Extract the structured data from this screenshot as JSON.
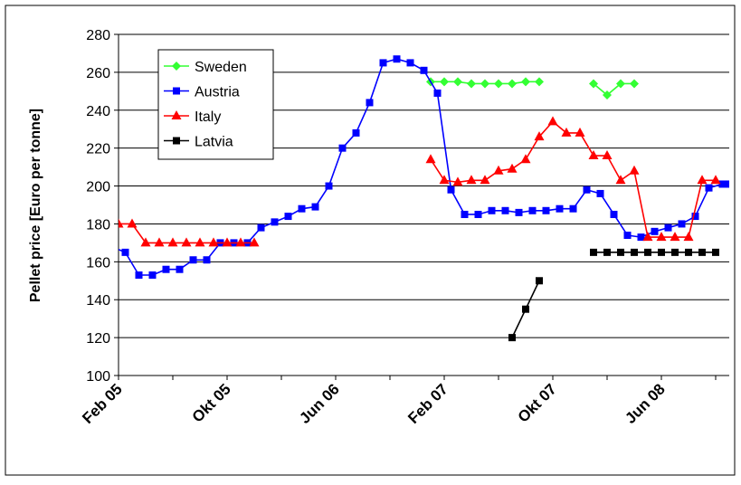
{
  "chart_data": {
    "type": "line",
    "ylabel": "Pellet price [Euro per tonne]",
    "ylim": [
      100,
      280
    ],
    "yticks": [
      100,
      120,
      140,
      160,
      180,
      200,
      220,
      240,
      260,
      280
    ],
    "xlim": [
      0,
      45
    ],
    "xtick_labels": [
      {
        "label": "Feb 05",
        "x": 0
      },
      {
        "label": "Okt 05",
        "x": 8
      },
      {
        "label": "Jun 06",
        "x": 16
      },
      {
        "label": "Feb 07",
        "x": 24
      },
      {
        "label": "Okt 07",
        "x": 32
      },
      {
        "label": "Jun 08",
        "x": 40
      }
    ],
    "grid": "horizontal",
    "legend_position": "top-left",
    "colors": {
      "Sweden": "#33ff33",
      "Austria": "#0000ff",
      "Italy": "#ff0000",
      "Latvia": "#000000"
    },
    "series": [
      {
        "name": "Sweden",
        "marker": "diamond",
        "segments": [
          [
            [
              23,
              255
            ],
            [
              24,
              255
            ],
            [
              25,
              255
            ],
            [
              26,
              254
            ],
            [
              27,
              254
            ],
            [
              28,
              254
            ],
            [
              29,
              254
            ],
            [
              30,
              255
            ],
            [
              31,
              255
            ]
          ],
          [
            [
              35,
              254
            ],
            [
              36,
              248
            ],
            [
              37,
              254
            ],
            [
              38,
              254
            ]
          ]
        ]
      },
      {
        "name": "Austria",
        "marker": "square",
        "segments": [
          [
            [
              -0.5,
              168
            ],
            [
              0.5,
              165
            ],
            [
              1.5,
              153
            ],
            [
              2.5,
              153
            ],
            [
              3.5,
              156
            ],
            [
              4.5,
              156
            ],
            [
              5.5,
              161
            ],
            [
              6.5,
              161
            ],
            [
              7.5,
              170
            ],
            [
              8.5,
              170
            ],
            [
              9.5,
              170
            ],
            [
              10.5,
              178
            ],
            [
              11.5,
              181
            ],
            [
              12.5,
              184
            ],
            [
              13.5,
              188
            ],
            [
              14.5,
              189
            ],
            [
              15.5,
              200
            ],
            [
              16.5,
              220
            ],
            [
              17.5,
              228
            ],
            [
              18.5,
              244
            ],
            [
              19.5,
              265
            ],
            [
              20.5,
              267
            ],
            [
              21.5,
              265
            ],
            [
              22.5,
              261
            ],
            [
              23.5,
              249
            ],
            [
              24.5,
              198
            ],
            [
              25.5,
              185
            ],
            [
              26.5,
              185
            ],
            [
              27.5,
              187
            ],
            [
              28.5,
              187
            ],
            [
              29.5,
              186
            ],
            [
              30.5,
              187
            ],
            [
              31.5,
              187
            ],
            [
              32.5,
              188
            ],
            [
              33.5,
              188
            ],
            [
              34.5,
              198
            ],
            [
              35.5,
              196
            ],
            [
              36.5,
              185
            ],
            [
              37.5,
              174
            ],
            [
              38.5,
              173
            ],
            [
              39.5,
              176
            ],
            [
              40.5,
              178
            ],
            [
              41.5,
              180
            ],
            [
              42.5,
              184
            ],
            [
              43.5,
              199
            ],
            [
              44.5,
              201
            ],
            [
              45,
              201
            ]
          ]
        ]
      },
      {
        "name": "Italy",
        "marker": "triangle",
        "segments": [
          [
            [
              0,
              180
            ],
            [
              1,
              180
            ],
            [
              2,
              170
            ],
            [
              3,
              170
            ],
            [
              4,
              170
            ],
            [
              5,
              170
            ],
            [
              6,
              170
            ],
            [
              7,
              170
            ],
            [
              8,
              170
            ],
            [
              9,
              170
            ],
            [
              10,
              170
            ]
          ],
          [
            [
              23,
              214
            ],
            [
              24,
              203
            ],
            [
              25,
              202
            ],
            [
              26,
              203
            ],
            [
              27,
              203
            ],
            [
              28,
              208
            ],
            [
              29,
              209
            ],
            [
              30,
              214
            ],
            [
              31,
              226
            ],
            [
              32,
              234
            ],
            [
              33,
              228
            ],
            [
              34,
              228
            ],
            [
              35,
              216
            ],
            [
              36,
              216
            ],
            [
              37,
              203
            ],
            [
              38,
              208
            ],
            [
              39,
              173
            ],
            [
              40,
              173
            ],
            [
              41,
              173
            ],
            [
              42,
              173
            ],
            [
              43,
              203
            ],
            [
              44,
              203
            ]
          ]
        ]
      },
      {
        "name": "Latvia",
        "marker": "square",
        "segments": [
          [
            [
              29,
              120
            ],
            [
              30,
              135
            ],
            [
              31,
              150
            ]
          ],
          [
            [
              35,
              165
            ],
            [
              36,
              165
            ],
            [
              37,
              165
            ],
            [
              38,
              165
            ],
            [
              39,
              165
            ],
            [
              40,
              165
            ],
            [
              41,
              165
            ],
            [
              42,
              165
            ],
            [
              43,
              165
            ],
            [
              44,
              165
            ]
          ]
        ]
      }
    ]
  }
}
